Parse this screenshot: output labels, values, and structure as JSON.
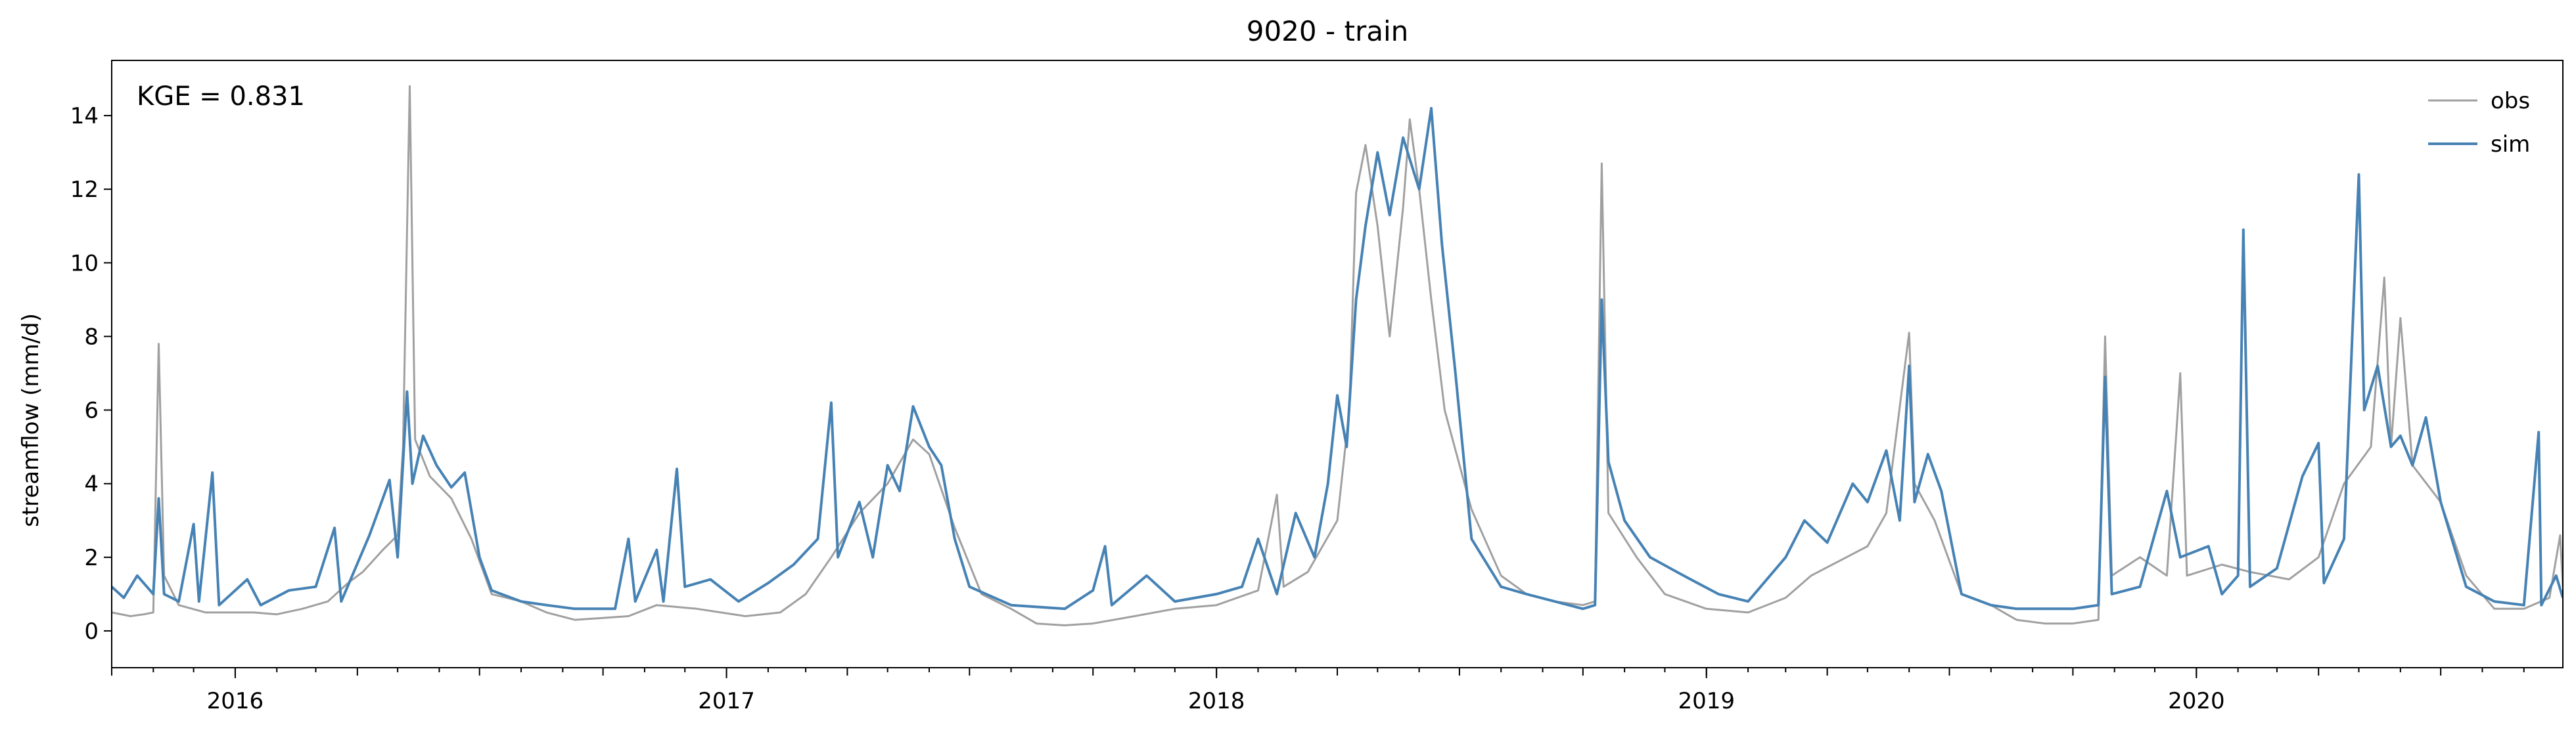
{
  "chart_data": {
    "type": "line",
    "title": "9020 - train",
    "ylabel": "streamflow (mm/d)",
    "xlabel": "",
    "xlim": [
      "2015-10-01",
      "2020-09-30"
    ],
    "ylim": [
      -1,
      15.5
    ],
    "y_ticks": [
      0,
      2,
      4,
      6,
      8,
      10,
      12,
      14
    ],
    "x_tick_labels": [
      "2016",
      "2017",
      "2018",
      "2019",
      "2020"
    ],
    "grid": false,
    "legend_position": "top-right",
    "annotation": "KGE = 0.831",
    "series": [
      {
        "name": "obs",
        "color": "#a0a0a0",
        "points": [
          [
            "2015-10-01",
            0.5
          ],
          [
            "2015-10-15",
            0.4
          ],
          [
            "2015-10-25",
            0.45
          ],
          [
            "2015-11-01",
            0.5
          ],
          [
            "2015-11-05",
            7.8
          ],
          [
            "2015-11-09",
            1.5
          ],
          [
            "2015-11-20",
            0.7
          ],
          [
            "2015-12-10",
            0.5
          ],
          [
            "2016-01-15",
            0.5
          ],
          [
            "2016-02-01",
            0.45
          ],
          [
            "2016-02-20",
            0.6
          ],
          [
            "2016-03-10",
            0.8
          ],
          [
            "2016-03-25",
            1.3
          ],
          [
            "2016-04-05",
            1.6
          ],
          [
            "2016-04-20",
            2.2
          ],
          [
            "2016-05-01",
            2.6
          ],
          [
            "2016-05-05",
            5.0
          ],
          [
            "2016-05-10",
            14.8
          ],
          [
            "2016-05-14",
            5.2
          ],
          [
            "2016-05-25",
            4.2
          ],
          [
            "2016-06-10",
            3.6
          ],
          [
            "2016-06-25",
            2.5
          ],
          [
            "2016-07-10",
            1.0
          ],
          [
            "2016-08-01",
            0.8
          ],
          [
            "2016-08-20",
            0.5
          ],
          [
            "2016-09-10",
            0.3
          ],
          [
            "2016-10-01",
            0.35
          ],
          [
            "2016-10-20",
            0.4
          ],
          [
            "2016-11-10",
            0.7
          ],
          [
            "2016-12-10",
            0.6
          ],
          [
            "2017-01-15",
            0.4
          ],
          [
            "2017-02-10",
            0.5
          ],
          [
            "2017-03-01",
            1.0
          ],
          [
            "2017-03-20",
            2.0
          ],
          [
            "2017-04-10",
            3.2
          ],
          [
            "2017-05-01",
            4.0
          ],
          [
            "2017-05-20",
            5.2
          ],
          [
            "2017-06-01",
            4.8
          ],
          [
            "2017-06-20",
            2.8
          ],
          [
            "2017-07-10",
            1.0
          ],
          [
            "2017-08-01",
            0.6
          ],
          [
            "2017-08-20",
            0.2
          ],
          [
            "2017-09-10",
            0.15
          ],
          [
            "2017-10-01",
            0.2
          ],
          [
            "2017-11-01",
            0.4
          ],
          [
            "2017-12-01",
            0.6
          ],
          [
            "2018-01-01",
            0.7
          ],
          [
            "2018-02-01",
            1.1
          ],
          [
            "2018-02-15",
            3.7
          ],
          [
            "2018-02-20",
            1.2
          ],
          [
            "2018-03-10",
            1.6
          ],
          [
            "2018-04-01",
            3.0
          ],
          [
            "2018-04-10",
            6.0
          ],
          [
            "2018-04-15",
            11.9
          ],
          [
            "2018-04-22",
            13.2
          ],
          [
            "2018-05-01",
            11.0
          ],
          [
            "2018-05-10",
            8.0
          ],
          [
            "2018-05-20",
            11.5
          ],
          [
            "2018-05-25",
            13.9
          ],
          [
            "2018-06-01",
            12.0
          ],
          [
            "2018-06-10",
            9.0
          ],
          [
            "2018-06-20",
            6.0
          ],
          [
            "2018-07-10",
            3.3
          ],
          [
            "2018-08-01",
            1.5
          ],
          [
            "2018-08-20",
            1.0
          ],
          [
            "2018-09-10",
            0.8
          ],
          [
            "2018-10-01",
            0.7
          ],
          [
            "2018-10-10",
            0.8
          ],
          [
            "2018-10-15",
            12.7
          ],
          [
            "2018-10-20",
            3.2
          ],
          [
            "2018-11-10",
            2.0
          ],
          [
            "2018-12-01",
            1.0
          ],
          [
            "2019-01-01",
            0.6
          ],
          [
            "2019-02-01",
            0.5
          ],
          [
            "2019-03-01",
            0.9
          ],
          [
            "2019-03-20",
            1.5
          ],
          [
            "2019-04-10",
            1.9
          ],
          [
            "2019-05-01",
            2.3
          ],
          [
            "2019-05-15",
            3.2
          ],
          [
            "2019-06-01",
            8.1
          ],
          [
            "2019-06-05",
            4.0
          ],
          [
            "2019-06-20",
            3.0
          ],
          [
            "2019-07-10",
            1.0
          ],
          [
            "2019-08-01",
            0.7
          ],
          [
            "2019-08-20",
            0.3
          ],
          [
            "2019-09-10",
            0.2
          ],
          [
            "2019-10-01",
            0.2
          ],
          [
            "2019-10-20",
            0.3
          ],
          [
            "2019-10-25",
            8.0
          ],
          [
            "2019-10-30",
            1.5
          ],
          [
            "2019-11-20",
            2.0
          ],
          [
            "2019-12-10",
            1.5
          ],
          [
            "2019-12-20",
            7.0
          ],
          [
            "2019-12-25",
            1.5
          ],
          [
            "2020-01-20",
            1.8
          ],
          [
            "2020-02-10",
            1.6
          ],
          [
            "2020-03-10",
            1.4
          ],
          [
            "2020-04-01",
            2.0
          ],
          [
            "2020-04-20",
            4.0
          ],
          [
            "2020-05-10",
            5.0
          ],
          [
            "2020-05-20",
            9.6
          ],
          [
            "2020-05-25",
            5.0
          ],
          [
            "2020-06-01",
            8.5
          ],
          [
            "2020-06-10",
            4.5
          ],
          [
            "2020-07-01",
            3.5
          ],
          [
            "2020-07-20",
            1.5
          ],
          [
            "2020-08-10",
            0.6
          ],
          [
            "2020-09-01",
            0.6
          ],
          [
            "2020-09-20",
            0.9
          ],
          [
            "2020-09-28",
            2.6
          ],
          [
            "2020-09-30",
            1.2
          ]
        ]
      },
      {
        "name": "sim",
        "color": "#4682b4",
        "points": [
          [
            "2015-10-01",
            1.2
          ],
          [
            "2015-10-10",
            0.9
          ],
          [
            "2015-10-20",
            1.5
          ],
          [
            "2015-11-01",
            1.0
          ],
          [
            "2015-11-05",
            3.6
          ],
          [
            "2015-11-09",
            1.0
          ],
          [
            "2015-11-20",
            0.8
          ],
          [
            "2015-12-01",
            2.9
          ],
          [
            "2015-12-05",
            0.8
          ],
          [
            "2015-12-15",
            4.3
          ],
          [
            "2015-12-20",
            0.7
          ],
          [
            "2016-01-10",
            1.4
          ],
          [
            "2016-01-20",
            0.7
          ],
          [
            "2016-02-10",
            1.1
          ],
          [
            "2016-03-01",
            1.2
          ],
          [
            "2016-03-15",
            2.8
          ],
          [
            "2016-03-20",
            0.8
          ],
          [
            "2016-04-10",
            2.6
          ],
          [
            "2016-04-25",
            4.1
          ],
          [
            "2016-05-01",
            2.0
          ],
          [
            "2016-05-08",
            6.5
          ],
          [
            "2016-05-12",
            4.0
          ],
          [
            "2016-05-20",
            5.3
          ],
          [
            "2016-05-30",
            4.5
          ],
          [
            "2016-06-10",
            3.9
          ],
          [
            "2016-06-20",
            4.3
          ],
          [
            "2016-07-01",
            2.0
          ],
          [
            "2016-07-10",
            1.1
          ],
          [
            "2016-08-01",
            0.8
          ],
          [
            "2016-08-20",
            0.7
          ],
          [
            "2016-09-10",
            0.6
          ],
          [
            "2016-10-10",
            0.6
          ],
          [
            "2016-10-20",
            2.5
          ],
          [
            "2016-10-25",
            0.8
          ],
          [
            "2016-11-10",
            2.2
          ],
          [
            "2016-11-15",
            0.8
          ],
          [
            "2016-11-25",
            4.4
          ],
          [
            "2016-12-01",
            1.2
          ],
          [
            "2016-12-20",
            1.4
          ],
          [
            "2017-01-10",
            0.8
          ],
          [
            "2017-02-01",
            1.3
          ],
          [
            "2017-02-20",
            1.8
          ],
          [
            "2017-03-10",
            2.5
          ],
          [
            "2017-03-20",
            6.2
          ],
          [
            "2017-03-25",
            2.0
          ],
          [
            "2017-04-10",
            3.5
          ],
          [
            "2017-04-20",
            2.0
          ],
          [
            "2017-05-01",
            4.5
          ],
          [
            "2017-05-10",
            3.8
          ],
          [
            "2017-05-20",
            6.1
          ],
          [
            "2017-06-01",
            5.0
          ],
          [
            "2017-06-10",
            4.5
          ],
          [
            "2017-06-20",
            2.5
          ],
          [
            "2017-07-01",
            1.2
          ],
          [
            "2017-08-01",
            0.7
          ],
          [
            "2017-09-10",
            0.6
          ],
          [
            "2017-10-01",
            1.1
          ],
          [
            "2017-10-10",
            2.3
          ],
          [
            "2017-10-15",
            0.7
          ],
          [
            "2017-11-10",
            1.5
          ],
          [
            "2017-12-01",
            0.8
          ],
          [
            "2018-01-01",
            1.0
          ],
          [
            "2018-01-20",
            1.2
          ],
          [
            "2018-02-01",
            2.5
          ],
          [
            "2018-02-15",
            1.0
          ],
          [
            "2018-03-01",
            3.2
          ],
          [
            "2018-03-15",
            2.0
          ],
          [
            "2018-03-25",
            4.0
          ],
          [
            "2018-04-01",
            6.4
          ],
          [
            "2018-04-08",
            5.0
          ],
          [
            "2018-04-15",
            9.0
          ],
          [
            "2018-04-22",
            11.0
          ],
          [
            "2018-05-01",
            13.0
          ],
          [
            "2018-05-10",
            11.3
          ],
          [
            "2018-05-20",
            13.4
          ],
          [
            "2018-06-01",
            12.0
          ],
          [
            "2018-06-10",
            14.2
          ],
          [
            "2018-06-18",
            10.5
          ],
          [
            "2018-06-28",
            7.0
          ],
          [
            "2018-07-10",
            2.5
          ],
          [
            "2018-08-01",
            1.2
          ],
          [
            "2018-08-20",
            1.0
          ],
          [
            "2018-09-10",
            0.8
          ],
          [
            "2018-10-01",
            0.6
          ],
          [
            "2018-10-10",
            0.7
          ],
          [
            "2018-10-15",
            9.0
          ],
          [
            "2018-10-20",
            4.6
          ],
          [
            "2018-11-01",
            3.0
          ],
          [
            "2018-11-20",
            2.0
          ],
          [
            "2018-12-15",
            1.5
          ],
          [
            "2019-01-10",
            1.0
          ],
          [
            "2019-02-01",
            0.8
          ],
          [
            "2019-03-01",
            2.0
          ],
          [
            "2019-03-15",
            3.0
          ],
          [
            "2019-04-01",
            2.4
          ],
          [
            "2019-04-20",
            4.0
          ],
          [
            "2019-05-01",
            3.5
          ],
          [
            "2019-05-15",
            4.9
          ],
          [
            "2019-05-25",
            3.0
          ],
          [
            "2019-06-01",
            7.2
          ],
          [
            "2019-06-05",
            3.5
          ],
          [
            "2019-06-15",
            4.8
          ],
          [
            "2019-06-25",
            3.8
          ],
          [
            "2019-07-10",
            1.0
          ],
          [
            "2019-08-01",
            0.7
          ],
          [
            "2019-08-20",
            0.6
          ],
          [
            "2019-09-10",
            0.6
          ],
          [
            "2019-10-01",
            0.6
          ],
          [
            "2019-10-20",
            0.7
          ],
          [
            "2019-10-25",
            6.9
          ],
          [
            "2019-10-30",
            1.0
          ],
          [
            "2019-11-20",
            1.2
          ],
          [
            "2019-12-10",
            3.8
          ],
          [
            "2019-12-20",
            2.0
          ],
          [
            "2020-01-10",
            2.3
          ],
          [
            "2020-01-20",
            1.0
          ],
          [
            "2020-02-01",
            1.5
          ],
          [
            "2020-02-05",
            10.9
          ],
          [
            "2020-02-10",
            1.2
          ],
          [
            "2020-03-01",
            1.7
          ],
          [
            "2020-03-20",
            4.2
          ],
          [
            "2020-04-01",
            5.1
          ],
          [
            "2020-04-05",
            1.3
          ],
          [
            "2020-04-20",
            2.5
          ],
          [
            "2020-05-01",
            12.4
          ],
          [
            "2020-05-05",
            6.0
          ],
          [
            "2020-05-15",
            7.2
          ],
          [
            "2020-05-25",
            5.0
          ],
          [
            "2020-06-01",
            5.3
          ],
          [
            "2020-06-10",
            4.5
          ],
          [
            "2020-06-20",
            5.8
          ],
          [
            "2020-07-01",
            3.5
          ],
          [
            "2020-07-20",
            1.2
          ],
          [
            "2020-08-10",
            0.8
          ],
          [
            "2020-09-01",
            0.7
          ],
          [
            "2020-09-12",
            5.4
          ],
          [
            "2020-09-14",
            0.7
          ],
          [
            "2020-09-25",
            1.5
          ],
          [
            "2020-09-30",
            0.9
          ]
        ]
      }
    ]
  }
}
